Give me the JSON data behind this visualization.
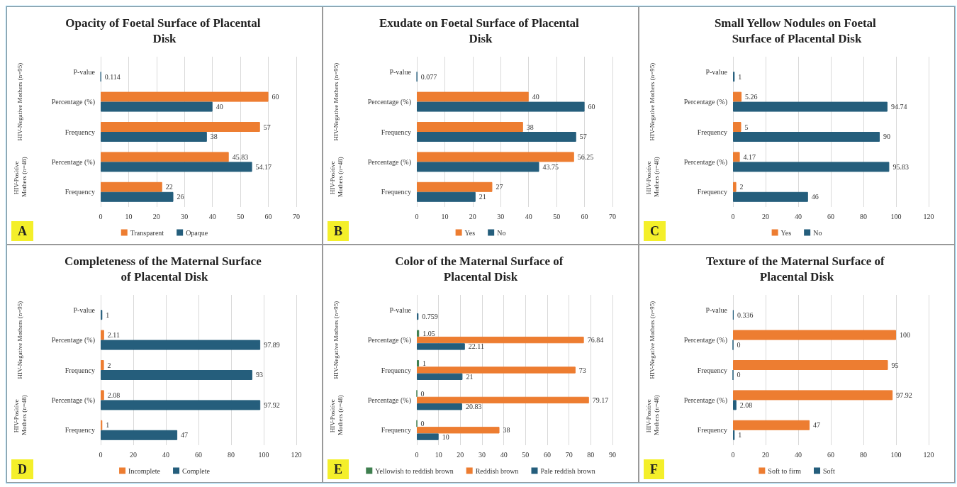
{
  "chart_data": [
    {
      "type": "bar",
      "orientation": "horizontal",
      "title": "Opacity of Foetal Surface of Placental Disk",
      "categories": [
        "P-value",
        "Percentage (%)",
        "Frequency",
        "Percentage (%)",
        "Frequency"
      ],
      "series": [
        {
          "name": "Transparent",
          "color": "#ed7d31",
          "values": [
            null,
            60,
            57,
            45.83,
            22
          ]
        },
        {
          "name": "Opaque",
          "color": "#255e7c",
          "values": [
            0.114,
            40,
            38,
            54.17,
            26
          ]
        }
      ],
      "xlim": [
        0,
        70
      ],
      "xticks": [
        0,
        10,
        20,
        30,
        40,
        50,
        60,
        70
      ],
      "grid": "x",
      "legend": "bottom",
      "data_labels": true,
      "annotations": [
        "HIV-Negative Mothers (n=95)",
        "HIV-Positive Mothers (n=48)",
        "A"
      ]
    },
    {
      "type": "bar",
      "orientation": "horizontal",
      "title": "Exudate on Foetal Surface of Placental Disk",
      "categories": [
        "P-value",
        "Percentage (%)",
        "Frequency",
        "Percentage (%)",
        "Frequency"
      ],
      "series": [
        {
          "name": "Yes",
          "color": "#ed7d31",
          "values": [
            null,
            40,
            38,
            56.25,
            27
          ]
        },
        {
          "name": "No",
          "color": "#255e7c",
          "values": [
            0.077,
            60,
            57,
            43.75,
            21
          ]
        }
      ],
      "xlim": [
        0,
        70
      ],
      "xticks": [
        0,
        10,
        20,
        30,
        40,
        50,
        60,
        70
      ],
      "grid": "x",
      "legend": "bottom",
      "data_labels": true,
      "annotations": [
        "HIV-Negative Mothers (n=95)",
        "HIV-Positive Mothers (n=48)",
        "B"
      ]
    },
    {
      "type": "bar",
      "orientation": "horizontal",
      "title": "Small Yellow Nodules on Foetal Surface of Placental Disk",
      "categories": [
        "P-value",
        "Percentage (%)",
        "Frequency",
        "Percentage (%)",
        "Frequency"
      ],
      "series": [
        {
          "name": "Yes",
          "color": "#ed7d31",
          "values": [
            null,
            5.26,
            5,
            4.17,
            2
          ]
        },
        {
          "name": "No",
          "color": "#255e7c",
          "values": [
            1,
            94.74,
            90,
            95.83,
            46
          ]
        }
      ],
      "xlim": [
        0,
        120
      ],
      "xticks": [
        0,
        20,
        40,
        60,
        80,
        100,
        120
      ],
      "grid": "x",
      "legend": "bottom",
      "data_labels": true,
      "annotations": [
        "HIV-Negative Mothers (n=95)",
        "HIV-Positive Mothers (n=48)",
        "C"
      ]
    },
    {
      "type": "bar",
      "orientation": "horizontal",
      "title": "Completeness of the Maternal Surface of Placental Disk",
      "categories": [
        "P-value",
        "Percentage (%)",
        "Frequency",
        "Percentage (%)",
        "Frequency"
      ],
      "series": [
        {
          "name": "Incomplete",
          "color": "#ed7d31",
          "values": [
            null,
            2.11,
            2,
            2.08,
            1
          ]
        },
        {
          "name": "Complete",
          "color": "#255e7c",
          "values": [
            1,
            97.89,
            93,
            97.92,
            47
          ]
        }
      ],
      "xlim": [
        0,
        120
      ],
      "xticks": [
        0,
        20,
        40,
        60,
        80,
        100,
        120
      ],
      "grid": "x",
      "legend": "bottom",
      "data_labels": true,
      "annotations": [
        "HIV-Negative Mothers (n=95)",
        "HIV-Positive Mothers (n=48)",
        "D"
      ]
    },
    {
      "type": "bar",
      "orientation": "horizontal",
      "title": "Color of the Maternal Surface of Placental Disk",
      "categories": [
        "P-value",
        "Percentage (%)",
        "Frequency",
        "Percentage (%)",
        "Frequency"
      ],
      "series": [
        {
          "name": "Yellowish to reddish brown",
          "color": "#3f7f4f",
          "values": [
            null,
            1.05,
            1,
            0,
            0
          ]
        },
        {
          "name": "Reddish brown",
          "color": "#ed7d31",
          "values": [
            null,
            76.84,
            73,
            79.17,
            38
          ]
        },
        {
          "name": "Pale reddish brown",
          "color": "#255e7c",
          "values": [
            0.759,
            22.11,
            21,
            20.83,
            10
          ]
        }
      ],
      "xlim": [
        0,
        90
      ],
      "xticks": [
        0,
        10,
        20,
        30,
        40,
        50,
        60,
        70,
        80,
        90
      ],
      "grid": "x",
      "legend": "bottom",
      "data_labels": true,
      "annotations": [
        "HIV-Negative Mothers (n=95)",
        "HIV-Positive Mothers (n=48)",
        "E"
      ]
    },
    {
      "type": "bar",
      "orientation": "horizontal",
      "title": "Texture of the Maternal Surface of Placental Disk",
      "categories": [
        "P-value",
        "Percentage (%)",
        "Frequency",
        "Percentage (%)",
        "Frequency"
      ],
      "series": [
        {
          "name": "Soft to firm",
          "color": "#ed7d31",
          "values": [
            null,
            100,
            95,
            97.92,
            47
          ]
        },
        {
          "name": "Soft",
          "color": "#255e7c",
          "values": [
            0.336,
            0,
            0,
            2.08,
            1
          ]
        }
      ],
      "xlim": [
        0,
        120
      ],
      "xticks": [
        0,
        20,
        40,
        60,
        80,
        100,
        120
      ],
      "grid": "x",
      "legend": "bottom",
      "data_labels": true,
      "annotations": [
        "HIV-Negative Mothers (n=95)",
        "HIV-Positive Mothers (n=48)",
        "F"
      ]
    }
  ]
}
